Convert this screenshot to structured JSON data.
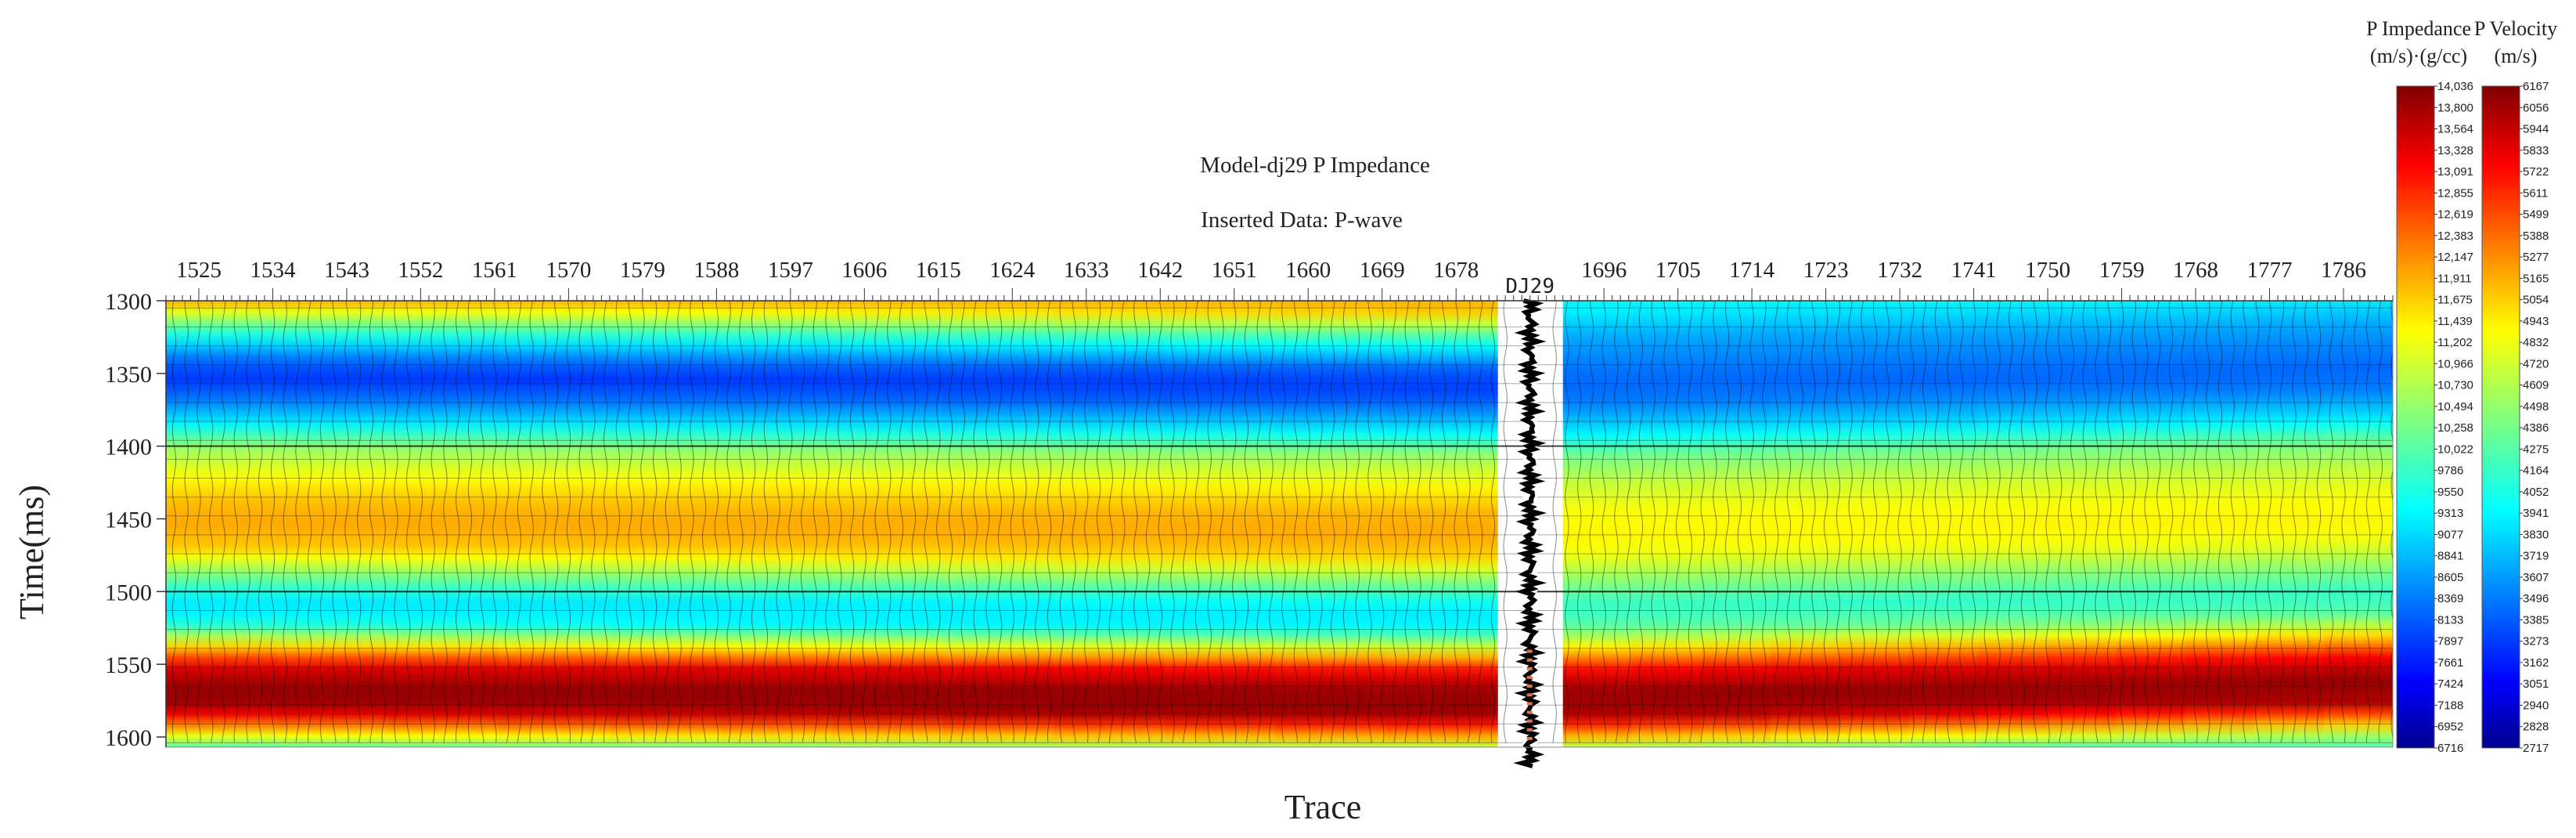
{
  "chart_data": {
    "type": "heatmap",
    "title": "Model-dj29 P Impedance",
    "subtitle": "Inserted Data: P-wave",
    "xlabel": "Trace",
    "ylabel": "Time(ms)",
    "x_tick_labels": [
      "1525",
      "1534",
      "1543",
      "1552",
      "1561",
      "1570",
      "1579",
      "1588",
      "1597",
      "1606",
      "1615",
      "1624",
      "1633",
      "1642",
      "1651",
      "1660",
      "1669",
      "1678",
      "1696",
      "1705",
      "1714",
      "1723",
      "1732",
      "1741",
      "1750",
      "1759",
      "1768",
      "1777",
      "1786"
    ],
    "x_range": [
      1521,
      1792
    ],
    "y_ticks": [
      1300,
      1350,
      1400,
      1450,
      1500,
      1550,
      1600
    ],
    "y_range": [
      1300,
      1607
    ],
    "well": {
      "name": "DJ29",
      "trace": 1687
    },
    "impedance_profile": {
      "time_ms": [
        1300,
        1320,
        1340,
        1352,
        1365,
        1385,
        1400,
        1420,
        1440,
        1455,
        1470,
        1490,
        1505,
        1520,
        1535,
        1550,
        1565,
        1580,
        1595,
        1607
      ],
      "impedance_left": [
        11900,
        9800,
        8250,
        7850,
        8200,
        9300,
        10500,
        11300,
        11850,
        11950,
        11700,
        10200,
        9200,
        9300,
        11300,
        13300,
        13900,
        13800,
        11800,
        10000
      ],
      "impedance_right": [
        9300,
        8700,
        8350,
        8200,
        8400,
        9200,
        10200,
        10900,
        11300,
        11400,
        11200,
        10300,
        9700,
        10100,
        11700,
        13300,
        13900,
        13700,
        11700,
        10000
      ]
    },
    "colorbars": [
      {
        "title": "P Impedance",
        "unit": "(m/s)·(g/cc)",
        "range": [
          6716,
          14036
        ],
        "tick_labels": [
          "14,036",
          "13,800",
          "13,564",
          "13,328",
          "13,091",
          "12,855",
          "12,619",
          "12,383",
          "12,147",
          "11,911",
          "11,675",
          "11,439",
          "11,202",
          "10,966",
          "10,730",
          "10,494",
          "10,258",
          "10,022",
          "9786",
          "9550",
          "9313",
          "9077",
          "8841",
          "8605",
          "8369",
          "8133",
          "7897",
          "7661",
          "7424",
          "7188",
          "6952",
          "6716"
        ]
      },
      {
        "title": "P Velocity",
        "unit": "(m/s)",
        "range": [
          2717,
          6167
        ],
        "tick_labels": [
          "6167",
          "6056",
          "5944",
          "5833",
          "5722",
          "5611",
          "5499",
          "5388",
          "5277",
          "5165",
          "5054",
          "4943",
          "4832",
          "4720",
          "4609",
          "4498",
          "4386",
          "4275",
          "4164",
          "4052",
          "3941",
          "3830",
          "3719",
          "3607",
          "3496",
          "3385",
          "3273",
          "3162",
          "3051",
          "2940",
          "2828",
          "2717"
        ]
      }
    ],
    "colormap": [
      "#00008f",
      "#0000ff",
      "#00ffff",
      "#ffff00",
      "#ff0000",
      "#800000"
    ],
    "grid": false
  }
}
